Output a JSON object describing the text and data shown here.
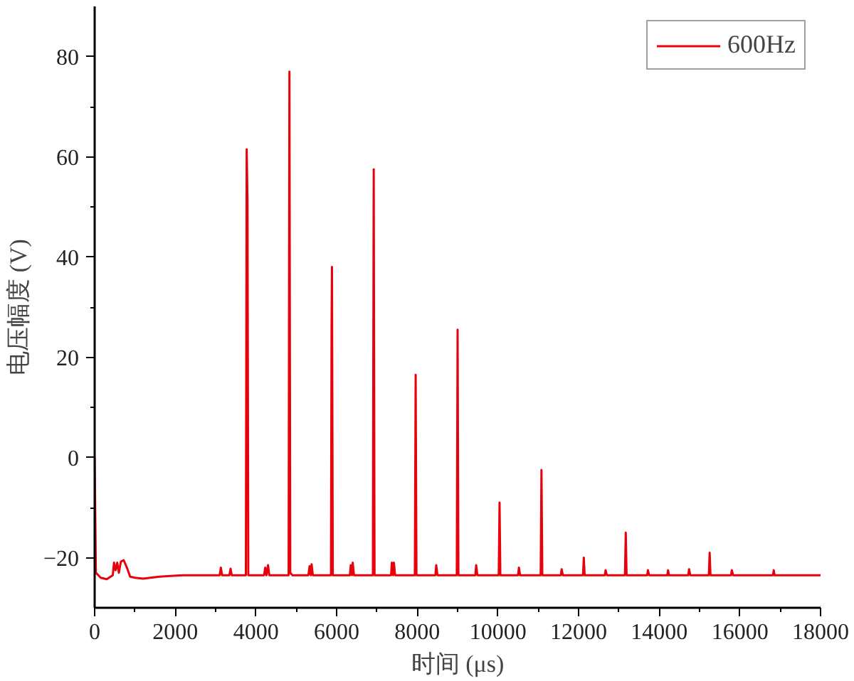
{
  "chart_data": {
    "type": "line",
    "xlabel": "时间 (μs)",
    "ylabel": "电压幅度 (V)",
    "xlim": [
      0,
      18000
    ],
    "xticks": [
      0,
      2000,
      4000,
      6000,
      8000,
      10000,
      12000,
      14000,
      16000,
      18000
    ],
    "ylim": [
      -30,
      90
    ],
    "yticks": [
      -20,
      0,
      20,
      40,
      60,
      80
    ],
    "grid": false,
    "legend": "top right",
    "series": [
      {
        "name": "600Hz",
        "color": "#e8000b",
        "x": [
          0,
          30,
          150,
          300,
          450,
          480,
          520,
          560,
          600,
          650,
          720,
          800,
          880,
          1000,
          1200,
          1600,
          2200,
          3100,
          3130,
          3160,
          3340,
          3370,
          3400,
          3750,
          3770,
          3790,
          3810,
          4200,
          4230,
          4260,
          4300,
          4330,
          4810,
          4830,
          4850,
          4900,
          5300,
          5330,
          5360,
          5380,
          5410,
          5860,
          5875,
          5885,
          5905,
          6330,
          6350,
          6380,
          6400,
          6430,
          6900,
          6910,
          6920,
          6940,
          7350,
          7370,
          7400,
          7420,
          7450,
          7940,
          7960,
          7980,
          8450,
          8470,
          8500,
          8980,
          9000,
          9020,
          9440,
          9460,
          9490,
          10020,
          10040,
          10060,
          10500,
          10520,
          10550,
          11060,
          11080,
          11100,
          11560,
          11580,
          11610,
          12110,
          12130,
          12150,
          12650,
          12670,
          12700,
          13150,
          13170,
          13190,
          13700,
          13720,
          13750,
          14200,
          14220,
          14240,
          14720,
          14740,
          14770,
          15230,
          15250,
          15270,
          15780,
          15800,
          15830,
          16820,
          16840,
          16860,
          18000
        ],
        "values": [
          0,
          -23,
          -24,
          -24.3,
          -23.5,
          -21,
          -22.5,
          -21,
          -23,
          -20.8,
          -20.5,
          -22,
          -23.8,
          -24,
          -24.2,
          -23.8,
          -23.5,
          -23.5,
          -22,
          -23.5,
          -23.5,
          -22.2,
          -23.5,
          -23.5,
          61.5,
          51,
          -23.5,
          -23.5,
          -22,
          -23.5,
          -21.5,
          -23.5,
          -23.5,
          77,
          -23,
          -23.5,
          -23.5,
          -21.7,
          -23.5,
          -21.3,
          -23.5,
          -23.5,
          26,
          38,
          -23.5,
          -23.5,
          -21.5,
          -23.5,
          -21,
          -23.5,
          -23.5,
          20,
          57.5,
          -23.5,
          -23.5,
          -21,
          -23.5,
          -21,
          -23.5,
          -23.5,
          16.5,
          -23.5,
          -23.5,
          -21.5,
          -23.5,
          -23.5,
          25.5,
          -23.5,
          -23.5,
          -21.5,
          -23.5,
          -23.5,
          -9,
          -23.5,
          -23.5,
          -22,
          -23.5,
          -23.5,
          -2.5,
          -23.5,
          -23.5,
          -22.3,
          -23.5,
          -23.5,
          -20,
          -23.5,
          -23.5,
          -22.5,
          -23.5,
          -23.5,
          -15,
          -23.5,
          -23.5,
          -22.5,
          -23.5,
          -23.5,
          -22.5,
          -23.5,
          -23.5,
          -22.3,
          -23.5,
          -23.5,
          -19,
          -23.5,
          -23.5,
          -22.5,
          -23.5,
          -23.5,
          -22.5,
          -23.5,
          -23.5
        ]
      }
    ]
  }
}
